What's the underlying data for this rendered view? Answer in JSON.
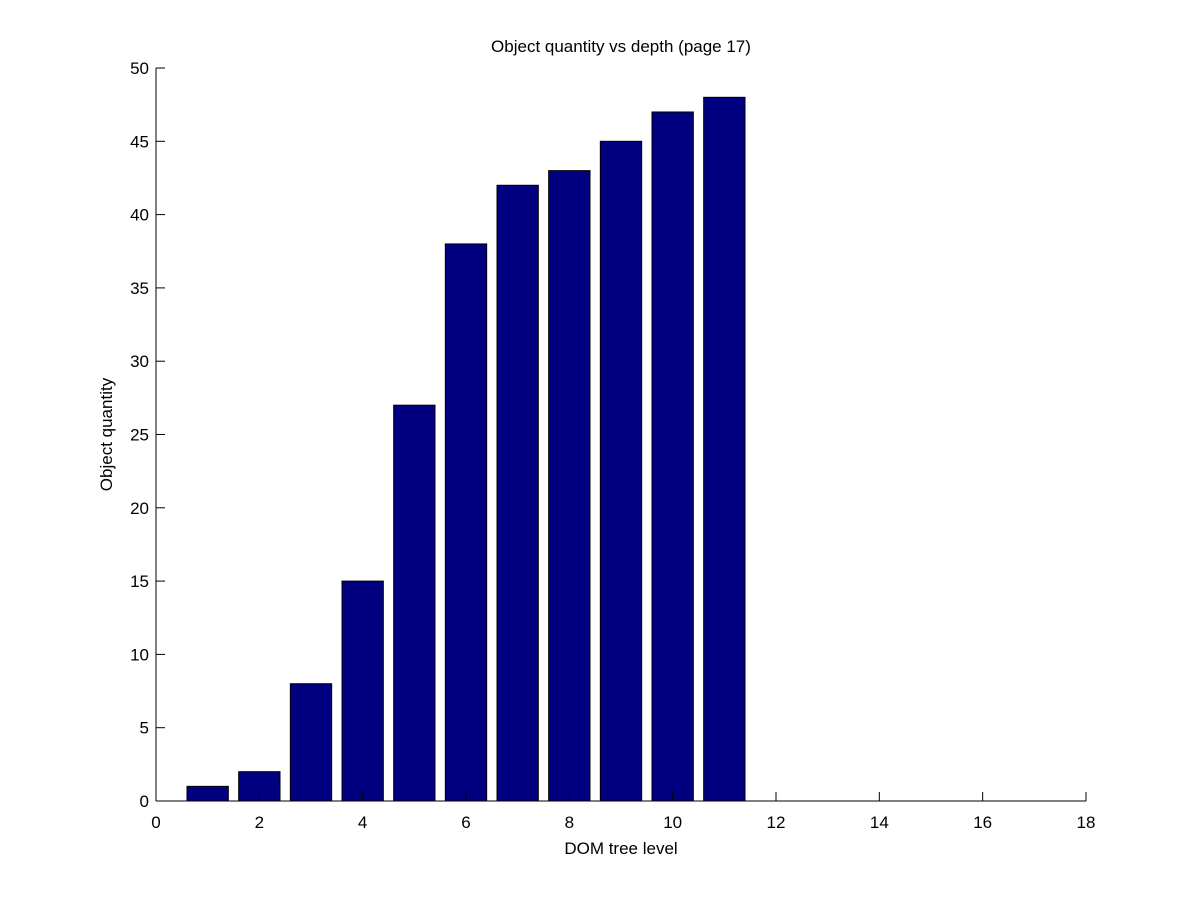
{
  "chart_data": {
    "type": "bar",
    "title": "Object quantity vs depth (page 17)",
    "xlabel": "DOM tree level",
    "ylabel": "Object quantity",
    "x": [
      1,
      2,
      3,
      4,
      5,
      6,
      7,
      8,
      9,
      10,
      11
    ],
    "values": [
      1,
      2,
      8,
      15,
      27,
      38,
      42,
      43,
      45,
      47,
      48
    ],
    "xlim": [
      0,
      18
    ],
    "ylim": [
      0,
      50
    ],
    "xticks": [
      0,
      2,
      4,
      6,
      8,
      10,
      12,
      14,
      16,
      18
    ],
    "yticks": [
      0,
      5,
      10,
      15,
      20,
      25,
      30,
      35,
      40,
      45,
      50
    ],
    "bar_color": "#000080",
    "grid": false
  }
}
